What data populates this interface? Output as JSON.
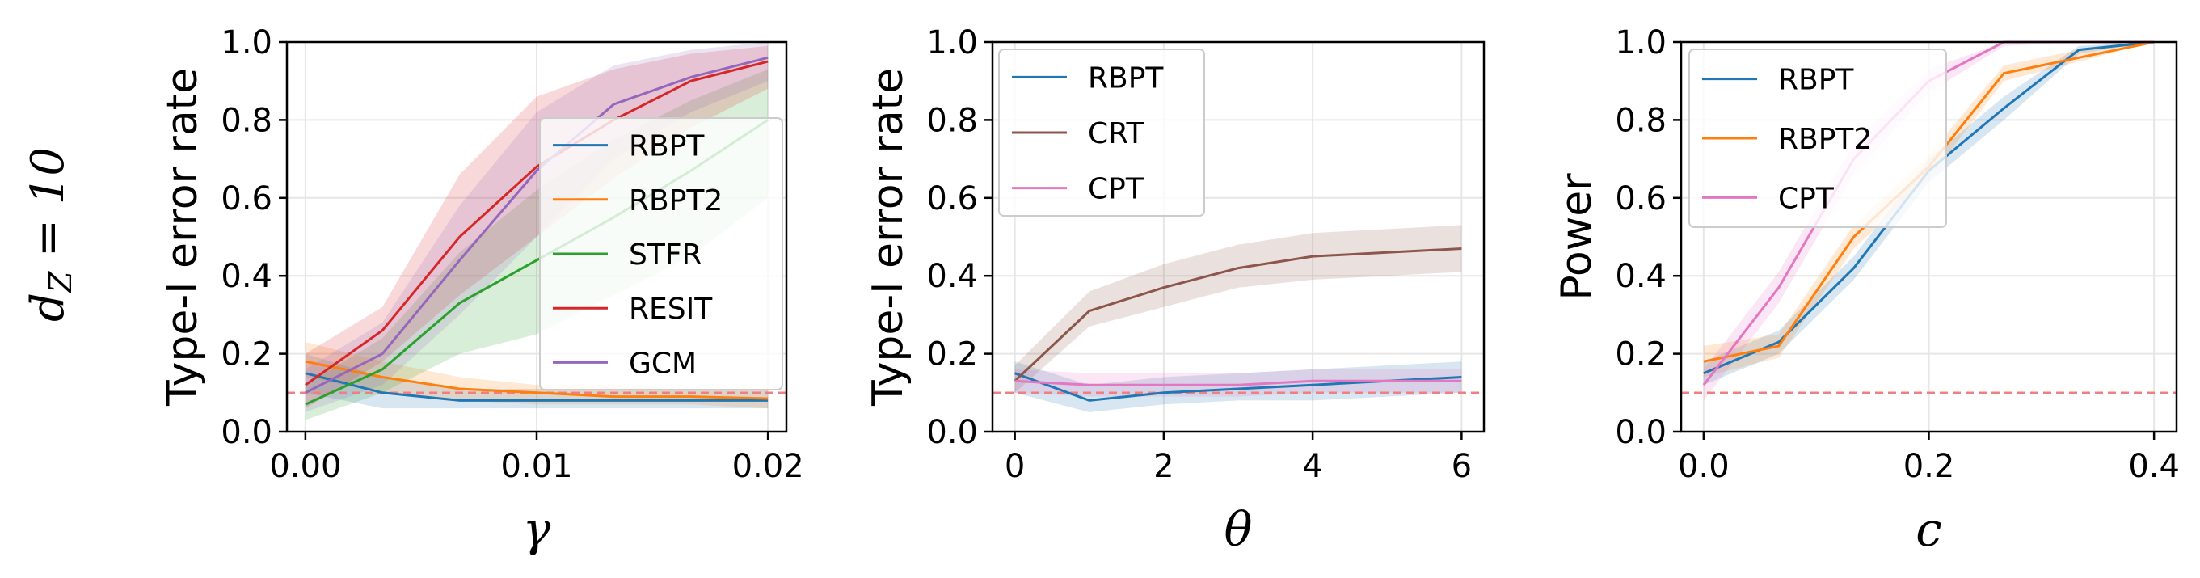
{
  "row_label": {
    "main": "d",
    "sub": "Z",
    "rest": " = 10"
  },
  "chart_data": [
    {
      "type": "line",
      "xlabel": "γ",
      "ylabel": "Type-I error rate",
      "xlim": [
        -0.0008,
        0.0208
      ],
      "ylim": [
        0,
        1
      ],
      "xticks": [
        0,
        0.01,
        0.02
      ],
      "xtick_labels": [
        "0.00",
        "0.01",
        "0.02"
      ],
      "yticks": [
        0,
        0.2,
        0.4,
        0.6,
        0.8,
        1.0
      ],
      "ytick_labels": [
        "0.0",
        "0.2",
        "0.4",
        "0.6",
        "0.8",
        "1.0"
      ],
      "grid": true,
      "reference_line": 0.1,
      "legend_position": "center-right",
      "x": [
        0,
        0.00333,
        0.00667,
        0.01,
        0.01333,
        0.01667,
        0.02
      ],
      "series": [
        {
          "name": "RBPT",
          "color": "#1f77b4",
          "values": [
            0.15,
            0.1,
            0.08,
            0.08,
            0.08,
            0.08,
            0.08
          ],
          "lower": [
            0.1,
            0.06,
            0.06,
            0.06,
            0.06,
            0.06,
            0.06
          ],
          "upper": [
            0.2,
            0.14,
            0.11,
            0.11,
            0.11,
            0.11,
            0.11
          ]
        },
        {
          "name": "RBPT2",
          "color": "#ff7f0e",
          "values": [
            0.18,
            0.14,
            0.11,
            0.1,
            0.09,
            0.09,
            0.085
          ],
          "lower": [
            0.14,
            0.1,
            0.08,
            0.07,
            0.07,
            0.07,
            0.06
          ],
          "upper": [
            0.23,
            0.18,
            0.14,
            0.12,
            0.12,
            0.11,
            0.11
          ]
        },
        {
          "name": "STFR",
          "color": "#2ca02c",
          "values": [
            0.07,
            0.16,
            0.33,
            0.44,
            0.55,
            0.67,
            0.8
          ],
          "lower": [
            0.03,
            0.1,
            0.2,
            0.25,
            0.35,
            0.45,
            0.6
          ],
          "upper": [
            0.12,
            0.24,
            0.46,
            0.62,
            0.75,
            0.85,
            0.93
          ]
        },
        {
          "name": "RESIT",
          "color": "#d62728",
          "values": [
            0.12,
            0.26,
            0.5,
            0.68,
            0.8,
            0.9,
            0.95
          ],
          "lower": [
            0.06,
            0.18,
            0.35,
            0.5,
            0.65,
            0.78,
            0.88
          ],
          "upper": [
            0.2,
            0.32,
            0.66,
            0.86,
            0.93,
            0.97,
            0.99
          ]
        },
        {
          "name": "GCM",
          "color": "#9467bd",
          "values": [
            0.1,
            0.2,
            0.44,
            0.67,
            0.84,
            0.91,
            0.96
          ],
          "lower": [
            0.05,
            0.12,
            0.3,
            0.5,
            0.7,
            0.82,
            0.9
          ],
          "upper": [
            0.16,
            0.28,
            0.58,
            0.82,
            0.94,
            0.98,
            1.0
          ]
        }
      ]
    },
    {
      "type": "line",
      "xlabel": "θ",
      "ylabel": "Type-I error rate",
      "xlim": [
        -0.3,
        6.3
      ],
      "ylim": [
        0,
        1
      ],
      "xticks": [
        0,
        2,
        4,
        6
      ],
      "xtick_labels": [
        "0",
        "2",
        "4",
        "6"
      ],
      "yticks": [
        0,
        0.2,
        0.4,
        0.6,
        0.8,
        1.0
      ],
      "ytick_labels": [
        "0.0",
        "0.2",
        "0.4",
        "0.6",
        "0.8",
        "1.0"
      ],
      "grid": true,
      "reference_line": 0.1,
      "legend_position": "top-left",
      "x": [
        0,
        1,
        2,
        3,
        4,
        5,
        6
      ],
      "series": [
        {
          "name": "RBPT",
          "color": "#1f77b4",
          "values": [
            0.15,
            0.08,
            0.1,
            0.11,
            0.12,
            0.13,
            0.14
          ],
          "lower": [
            0.1,
            0.05,
            0.07,
            0.08,
            0.08,
            0.09,
            0.1
          ],
          "upper": [
            0.18,
            0.12,
            0.14,
            0.15,
            0.16,
            0.17,
            0.18
          ]
        },
        {
          "name": "CRT",
          "color": "#8c564b",
          "values": [
            0.13,
            0.31,
            0.37,
            0.42,
            0.45,
            0.46,
            0.47
          ],
          "lower": [
            0.1,
            0.27,
            0.32,
            0.37,
            0.39,
            0.4,
            0.41
          ],
          "upper": [
            0.17,
            0.36,
            0.43,
            0.48,
            0.51,
            0.52,
            0.53
          ]
        },
        {
          "name": "CPT",
          "color": "#e377c2",
          "values": [
            0.13,
            0.12,
            0.12,
            0.12,
            0.13,
            0.13,
            0.13
          ],
          "lower": [
            0.1,
            0.09,
            0.09,
            0.09,
            0.1,
            0.1,
            0.1
          ],
          "upper": [
            0.16,
            0.15,
            0.15,
            0.15,
            0.16,
            0.16,
            0.16
          ]
        }
      ]
    },
    {
      "type": "line",
      "xlabel": "c",
      "ylabel": "Power",
      "xlim": [
        -0.02,
        0.42
      ],
      "ylim": [
        0,
        1
      ],
      "xticks": [
        0,
        0.2,
        0.4
      ],
      "xtick_labels": [
        "0.0",
        "0.2",
        "0.4"
      ],
      "yticks": [
        0,
        0.2,
        0.4,
        0.6,
        0.8,
        1.0
      ],
      "ytick_labels": [
        "0.0",
        "0.2",
        "0.4",
        "0.6",
        "0.8",
        "1.0"
      ],
      "grid": true,
      "reference_line": 0.1,
      "legend_position": "top-left",
      "x": [
        0,
        0.0667,
        0.1333,
        0.2,
        0.2667,
        0.3333,
        0.4
      ],
      "series": [
        {
          "name": "RBPT",
          "color": "#1f77b4",
          "values": [
            0.15,
            0.23,
            0.42,
            0.67,
            0.83,
            0.98,
            1.0
          ],
          "lower": [
            0.12,
            0.2,
            0.39,
            0.64,
            0.8,
            0.97,
            1.0
          ],
          "upper": [
            0.18,
            0.26,
            0.45,
            0.7,
            0.86,
            0.99,
            1.0
          ]
        },
        {
          "name": "RBPT2",
          "color": "#ff7f0e",
          "values": [
            0.18,
            0.22,
            0.5,
            0.68,
            0.92,
            0.96,
            1.0
          ],
          "lower": [
            0.14,
            0.19,
            0.47,
            0.65,
            0.9,
            0.95,
            1.0
          ],
          "upper": [
            0.22,
            0.25,
            0.53,
            0.71,
            0.94,
            0.98,
            1.0
          ]
        },
        {
          "name": "CPT",
          "color": "#e377c2",
          "values": [
            0.12,
            0.37,
            0.7,
            0.9,
            1.0,
            1.0,
            1.0
          ],
          "lower": [
            0.08,
            0.33,
            0.66,
            0.87,
            0.99,
            1.0,
            1.0
          ],
          "upper": [
            0.16,
            0.41,
            0.74,
            0.93,
            1.0,
            1.0,
            1.0
          ]
        }
      ]
    }
  ]
}
